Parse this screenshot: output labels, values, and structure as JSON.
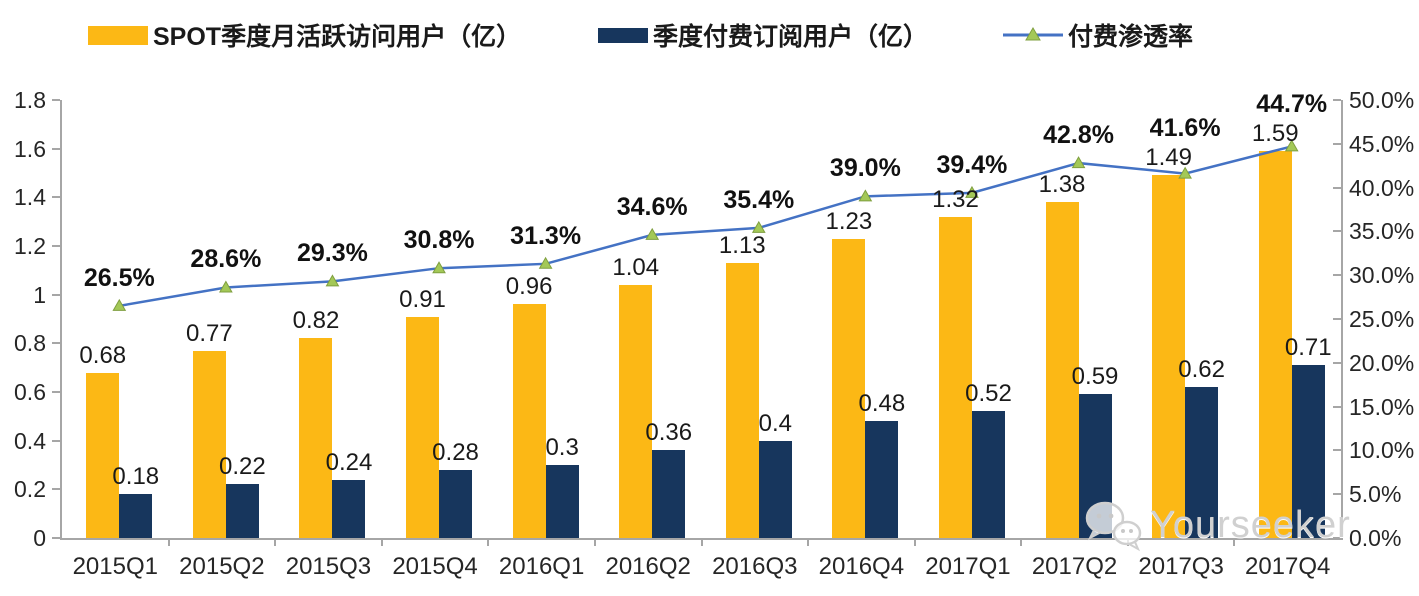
{
  "legend": [
    {
      "label": "SPOT季度月活跃访问用户（亿）",
      "type": "bar",
      "color": "#FCB815"
    },
    {
      "label": "季度付费订阅用户（亿）",
      "type": "bar",
      "color": "#17365D"
    },
    {
      "label": "付费渗透率",
      "type": "line",
      "color": "#4472C4",
      "marker_color": "#A3C857",
      "marker_edge": "#7F9F3F"
    }
  ],
  "chart_data": {
    "type": "bar",
    "subtype": "grouped bars with secondary-axis line",
    "categories": [
      "2015Q1",
      "2015Q2",
      "2015Q3",
      "2015Q4",
      "2016Q1",
      "2016Q2",
      "2016Q3",
      "2016Q4",
      "2017Q1",
      "2017Q2",
      "2017Q3",
      "2017Q4"
    ],
    "series": [
      {
        "name": "SPOT季度月活跃访问用户（亿）",
        "type": "bar",
        "axis": "left",
        "color": "#FCB815",
        "values": [
          0.68,
          0.77,
          0.82,
          0.91,
          0.96,
          1.04,
          1.13,
          1.23,
          1.32,
          1.38,
          1.49,
          1.59
        ],
        "labels": [
          "0.68",
          "0.77",
          "0.82",
          "0.91",
          "0.96",
          "1.04",
          "1.13",
          "1.23",
          "1.32",
          "1.38",
          "1.49",
          "1.59"
        ]
      },
      {
        "name": "季度付费订阅用户（亿）",
        "type": "bar",
        "axis": "left",
        "color": "#17365D",
        "values": [
          0.18,
          0.22,
          0.24,
          0.28,
          0.3,
          0.36,
          0.4,
          0.48,
          0.52,
          0.59,
          0.62,
          0.71
        ],
        "labels": [
          "0.18",
          "0.22",
          "0.24",
          "0.28",
          "0.3",
          "0.36",
          "0.4",
          "0.48",
          "0.52",
          "0.59",
          "0.62",
          "0.71"
        ]
      },
      {
        "name": "付费渗透率",
        "type": "line",
        "axis": "right",
        "color": "#4472C4",
        "marker": "triangle",
        "values": [
          26.5,
          28.6,
          29.3,
          30.8,
          31.3,
          34.6,
          35.4,
          39.0,
          39.4,
          42.8,
          41.6,
          44.7
        ],
        "labels": [
          "26.5%",
          "28.6%",
          "29.3%",
          "30.8%",
          "31.3%",
          "34.6%",
          "35.4%",
          "39.0%",
          "39.4%",
          "42.8%",
          "41.6%",
          "44.7%"
        ]
      }
    ],
    "left_axis": {
      "min": 0,
      "max": 1.8,
      "step": 0.2,
      "ticks": [
        "0",
        "0.2",
        "0.4",
        "0.6",
        "0.8",
        "1",
        "1.2",
        "1.4",
        "1.6",
        "1.8"
      ]
    },
    "right_axis": {
      "min": 0,
      "max": 50,
      "step": 5,
      "ticks": [
        "0.0%",
        "5.0%",
        "10.0%",
        "15.0%",
        "20.0%",
        "25.0%",
        "30.0%",
        "35.0%",
        "40.0%",
        "45.0%",
        "50.0%"
      ]
    },
    "grid": false,
    "legend_position": "top"
  },
  "watermark": {
    "text": "Yourseeker",
    "icon": "wechat-chat-bubbles-icon"
  }
}
